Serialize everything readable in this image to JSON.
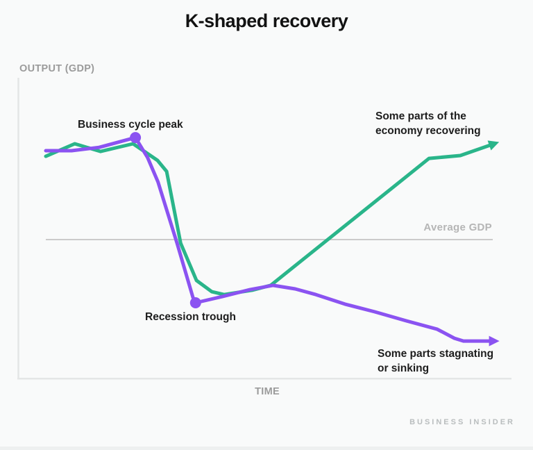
{
  "page": {
    "brand": "BUSINESS INSIDER",
    "background_color": "#f9fafa"
  },
  "chart_data": {
    "type": "line",
    "title": "K-shaped recovery",
    "xlabel": "TIME",
    "ylabel": "OUTPUT (GDP)",
    "grid": false,
    "legend_position": "none",
    "axes": {
      "x_range": [
        0,
        100
      ],
      "y_range": [
        0,
        100
      ],
      "numeric_ticks": false,
      "note": "conceptual axes without numeric scale; values are relative units estimated from pixels"
    },
    "reference_line": {
      "label": "Average GDP",
      "y": 47.3,
      "color": "#cbcbcb"
    },
    "annotations": {
      "peak": "Business cycle peak",
      "trough": "Recession trough",
      "recovering": "Some parts of the\neconomy recovering",
      "sinking": "Some parts stagnating\nor sinking"
    },
    "markers": {
      "peak": {
        "t": 19.8,
        "g": 87.0
      },
      "trough": {
        "t": 33.1,
        "g": 22.7
      }
    },
    "series": [
      {
        "id": "recovering",
        "name": "Some parts of the economy recovering",
        "color": "#2ab58a",
        "arrow_end": true,
        "points": [
          [
            0,
            79.7
          ],
          [
            6.4,
            84.6
          ],
          [
            12.1,
            81.6
          ],
          [
            19.3,
            84.6
          ],
          [
            24.7,
            78.1
          ],
          [
            26.7,
            73.8
          ],
          [
            29.8,
            45.9
          ],
          [
            33.3,
            31.4
          ],
          [
            36.7,
            27.0
          ],
          [
            39.4,
            25.9
          ],
          [
            45.6,
            27.6
          ],
          [
            49.7,
            29.5
          ],
          [
            84.7,
            78.9
          ],
          [
            91.6,
            80.0
          ],
          [
            99.1,
            84.6
          ]
        ]
      },
      {
        "id": "stagnating",
        "name": "Some parts stagnating or sinking",
        "color": "#8b53f1",
        "arrow_end": true,
        "points": [
          [
            0,
            81.9
          ],
          [
            5.7,
            81.9
          ],
          [
            11.8,
            83.2
          ],
          [
            19.8,
            87.0
          ],
          [
            22.5,
            79.2
          ],
          [
            24.8,
            69.7
          ],
          [
            29.0,
            45.9
          ],
          [
            32.5,
            24.9
          ],
          [
            33.1,
            22.7
          ],
          [
            39.0,
            25.1
          ],
          [
            45.1,
            27.8
          ],
          [
            50.2,
            29.5
          ],
          [
            55.1,
            28.1
          ],
          [
            59.7,
            25.9
          ],
          [
            66.1,
            22.2
          ],
          [
            72.7,
            19.2
          ],
          [
            79.6,
            15.7
          ],
          [
            86.5,
            12.4
          ],
          [
            90.3,
            8.9
          ],
          [
            92.3,
            7.8
          ],
          [
            99.1,
            7.8
          ]
        ]
      }
    ]
  }
}
